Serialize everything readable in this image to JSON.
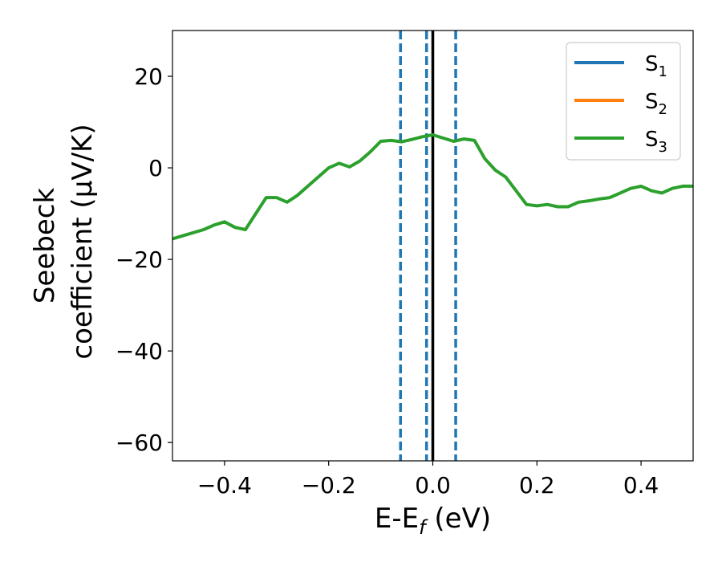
{
  "chart_data": {
    "type": "line",
    "xlabel": {
      "main": "E-E",
      "sub": "f",
      "tail": " (eV)"
    },
    "ylabel": {
      "line1": "Seebeck",
      "line2": "coefficient  (μV/K)"
    },
    "xlim": [
      -0.5,
      0.5
    ],
    "ylim": [
      -64,
      30
    ],
    "xticks": [
      -0.4,
      -0.2,
      0.0,
      0.2,
      0.4
    ],
    "xtick_labels": [
      "−0.4",
      "−0.2",
      "0.0",
      "0.2",
      "0.4"
    ],
    "yticks": [
      20,
      0,
      -20,
      -40,
      -60
    ],
    "ytick_labels": [
      "20",
      "0",
      "−20",
      "−40",
      "−60"
    ],
    "grid": false,
    "legend": {
      "position": "top-right"
    },
    "series": [
      {
        "name": "S",
        "sub": "1",
        "color": "#1f77b4",
        "x": [],
        "y": []
      },
      {
        "name": "S",
        "sub": "2",
        "color": "#ff7f0e",
        "x": [],
        "y": []
      },
      {
        "name": "S",
        "sub": "3",
        "color": "#2ca02c",
        "x": [
          -0.5,
          -0.47,
          -0.44,
          -0.42,
          -0.4,
          -0.38,
          -0.36,
          -0.34,
          -0.32,
          -0.3,
          -0.28,
          -0.26,
          -0.24,
          -0.22,
          -0.2,
          -0.18,
          -0.16,
          -0.14,
          -0.12,
          -0.1,
          -0.08,
          -0.06,
          -0.04,
          -0.02,
          0.0,
          0.02,
          0.04,
          0.06,
          0.08,
          0.1,
          0.12,
          0.14,
          0.16,
          0.18,
          0.2,
          0.22,
          0.24,
          0.26,
          0.28,
          0.3,
          0.32,
          0.34,
          0.36,
          0.38,
          0.4,
          0.42,
          0.44,
          0.46,
          0.48,
          0.5
        ],
        "y": [
          -15.5,
          -14.5,
          -13.5,
          -12.5,
          -11.8,
          -13.0,
          -13.5,
          -10.0,
          -6.5,
          -6.5,
          -7.5,
          -6.0,
          -4.0,
          -2.0,
          0.0,
          1.0,
          0.2,
          1.5,
          3.5,
          5.8,
          6.0,
          5.7,
          6.2,
          6.8,
          7.2,
          6.5,
          5.8,
          6.3,
          6.0,
          2.0,
          -0.5,
          -2.0,
          -5.0,
          -8.0,
          -8.3,
          -8.0,
          -8.5,
          -8.5,
          -7.5,
          -7.2,
          -6.8,
          -6.5,
          -5.5,
          -4.5,
          -4.0,
          -5.0,
          -5.5,
          -4.5,
          -4.0,
          -4.0
        ]
      }
    ],
    "vlines": [
      {
        "x": -0.062,
        "style": "dashed",
        "color": "#1f77b4"
      },
      {
        "x": -0.012,
        "style": "dashed",
        "color": "#1f77b4"
      },
      {
        "x": 0.0,
        "style": "solid",
        "color": "#000000"
      },
      {
        "x": 0.044,
        "style": "dashed",
        "color": "#1f77b4"
      }
    ]
  }
}
